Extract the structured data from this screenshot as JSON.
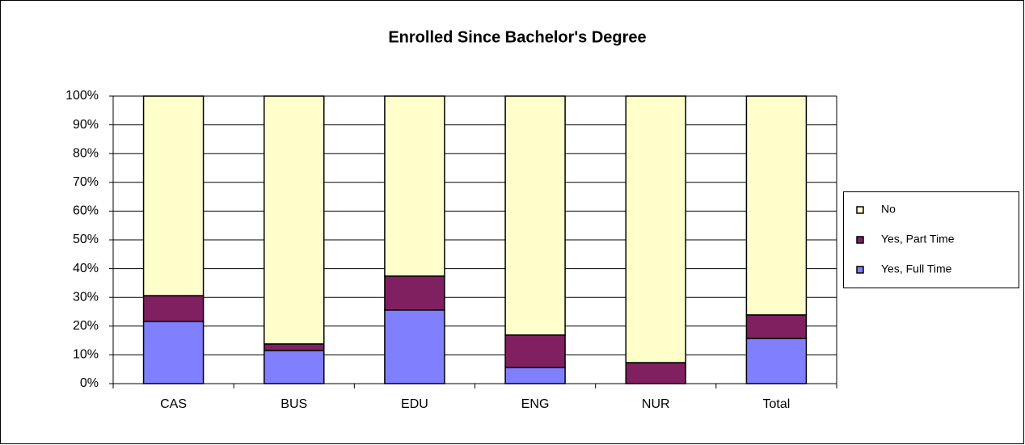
{
  "chart_data": {
    "type": "stacked_bar_100",
    "title": "Enrolled Since Bachelor's Degree",
    "categories": [
      "CAS",
      "BUS",
      "EDU",
      "ENG",
      "NUR",
      "Total"
    ],
    "series": [
      {
        "name": "Yes, Full Time",
        "color": "#8080ff",
        "values": [
          21.6,
          11.5,
          25.6,
          5.6,
          0,
          15.7
        ]
      },
      {
        "name": "Yes, Part Time",
        "color": "#802060",
        "values": [
          9.0,
          2.3,
          11.8,
          11.3,
          7.3,
          8.2
        ]
      },
      {
        "name": "No",
        "color": "#ffffcc",
        "values": [
          69.4,
          86.2,
          62.6,
          83.1,
          92.7,
          76.1
        ]
      }
    ],
    "ylim": [
      0,
      100
    ],
    "yticks": [
      {
        "value": 0,
        "label": "0%"
      },
      {
        "value": 10,
        "label": "10%"
      },
      {
        "value": 20,
        "label": "20%"
      },
      {
        "value": 30,
        "label": "30%"
      },
      {
        "value": 40,
        "label": "40%"
      },
      {
        "value": 50,
        "label": "50%"
      },
      {
        "value": 60,
        "label": "60%"
      },
      {
        "value": 70,
        "label": "70%"
      },
      {
        "value": 80,
        "label": "80%"
      },
      {
        "value": 90,
        "label": "90%"
      },
      {
        "value": 100,
        "label": "100%"
      }
    ],
    "grid": true,
    "legend": "right"
  }
}
